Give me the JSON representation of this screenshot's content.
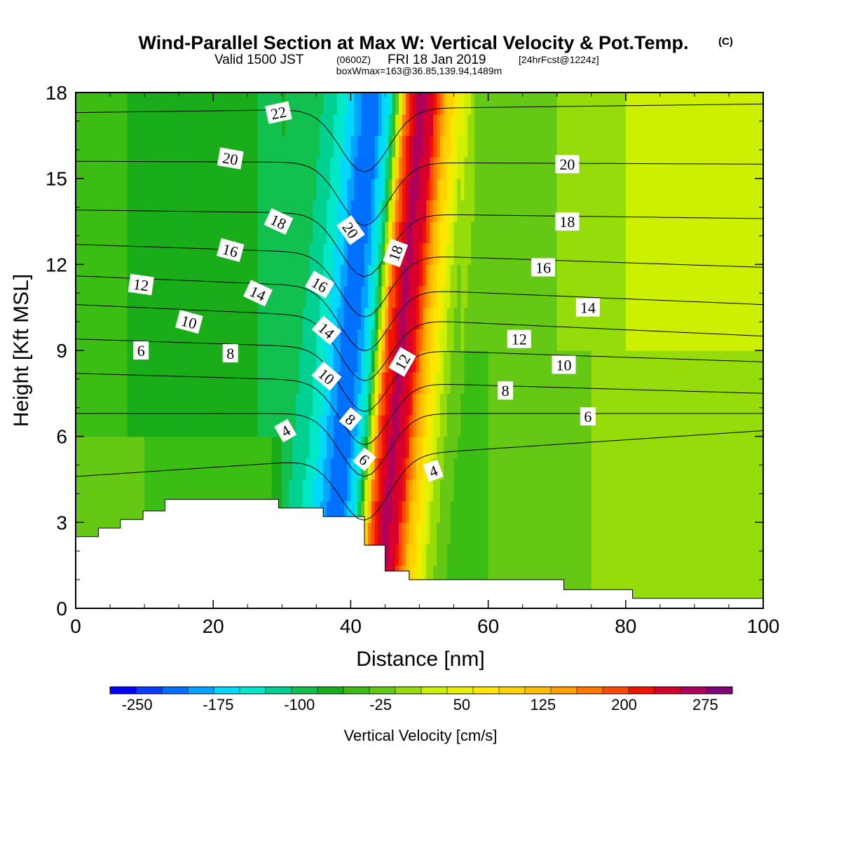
{
  "titles": {
    "main": "Wind-Parallel Section at Max W: Vertical Velocity & Pot.Temp.",
    "copyright": "(C)",
    "valid_prefix": "Valid 1500 JST",
    "valid_utc": "(0600Z)",
    "valid_date": "FRI 18 Jan 2019",
    "forecast_info": "[24hrFcst@1224z]",
    "box_info": "boxWmax=163@36.85,139.94,1489m"
  },
  "chart_data": {
    "type": "heatmap",
    "title": "Wind-Parallel Section at Max W: Vertical Velocity & Pot.Temp.",
    "xlabel": "Distance [nm]",
    "ylabel": "Height [Kft MSL]",
    "xlim": [
      0,
      100
    ],
    "ylim": [
      0,
      18
    ],
    "x_ticks": [
      "0",
      "20",
      "40",
      "60",
      "80",
      "100"
    ],
    "y_ticks": [
      "0",
      "3",
      "6",
      "9",
      "12",
      "15",
      "18"
    ],
    "x_tick_values": [
      0,
      20,
      40,
      60,
      80,
      100
    ],
    "y_tick_values": [
      0,
      3,
      6,
      9,
      12,
      15,
      18
    ],
    "colorbar": {
      "title": "Vertical Velocity [cm/s]",
      "labels": [
        "-250",
        "-175",
        "-100",
        "-25",
        "50",
        "125",
        "200",
        "275"
      ],
      "label_values": [
        -250,
        -175,
        -100,
        -25,
        50,
        125,
        200,
        275
      ],
      "min": -275,
      "max": 300,
      "step": 25,
      "colors": [
        "#0000ff",
        "#0a3cff",
        "#0070ff",
        "#00a4ff",
        "#00d8ff",
        "#00e8c8",
        "#00d090",
        "#12c050",
        "#1aad1a",
        "#3cbd14",
        "#64c814",
        "#96dc0a",
        "#cdef00",
        "#e8f000",
        "#ffe600",
        "#ffd200",
        "#ffbe00",
        "#ffa000",
        "#ff7800",
        "#ff4a00",
        "#f01400",
        "#d7002d",
        "#af005a",
        "#820078"
      ]
    },
    "velocity_profile": {
      "x": [
        0,
        5,
        10,
        15,
        20,
        25,
        30,
        33,
        36,
        38,
        40,
        42,
        44,
        46,
        48,
        50,
        53,
        56,
        60,
        70,
        80,
        90,
        100
      ],
      "w_cm_s": [
        -35,
        -45,
        -55,
        -60,
        -65,
        -70,
        -85,
        -110,
        -160,
        -215,
        -200,
        -120,
        200,
        290,
        250,
        130,
        10,
        -30,
        -25,
        -20,
        -10,
        -5,
        -5
      ]
    },
    "terrain_kft": {
      "x": [
        0,
        3.3,
        6.5,
        9.8,
        13,
        16,
        20,
        26,
        29.5,
        36,
        42,
        45,
        48.5,
        60,
        71,
        81,
        100
      ],
      "h": [
        2.5,
        2.8,
        3.1,
        3.4,
        3.8,
        3.8,
        3.8,
        3.8,
        3.5,
        3.2,
        2.2,
        1.3,
        1.0,
        1.0,
        0.65,
        0.35,
        0.35
      ]
    },
    "theta_contours": [
      {
        "label": "4",
        "y_left": 4.6,
        "y_right": 6.2
      },
      {
        "label": "6",
        "y_left": 6.8,
        "y_right": 6.8
      },
      {
        "label": "8",
        "y_left": 8.2,
        "y_right": 7.5
      },
      {
        "label": "10",
        "y_left": 9.4,
        "y_right": 8.6
      },
      {
        "label": "12",
        "y_left": 10.6,
        "y_right": 9.5
      },
      {
        "label": "14",
        "y_left": 11.6,
        "y_right": 10.6
      },
      {
        "label": "16",
        "y_left": 12.7,
        "y_right": 11.9
      },
      {
        "label": "18",
        "y_left": 13.9,
        "y_right": 13.6
      },
      {
        "label": "20",
        "y_left": 15.6,
        "y_right": 15.5
      },
      {
        "label": "22",
        "y_left": 17.3,
        "y_right": 17.6
      }
    ],
    "contour_labels": [
      {
        "text": "22",
        "x": 29.5,
        "y": 17.3,
        "angle": -12
      },
      {
        "text": "20",
        "x": 22.5,
        "y": 15.7,
        "angle": 10
      },
      {
        "text": "18",
        "x": 29.5,
        "y": 13.5,
        "angle": 25
      },
      {
        "text": "16",
        "x": 22.5,
        "y": 12.5,
        "angle": 15
      },
      {
        "text": "14",
        "x": 26.5,
        "y": 11.0,
        "angle": 25
      },
      {
        "text": "12",
        "x": 9.5,
        "y": 11.3,
        "angle": 8
      },
      {
        "text": "10",
        "x": 16.5,
        "y": 10.0,
        "angle": 15
      },
      {
        "text": "6",
        "x": 9.5,
        "y": 9.0,
        "angle": 0
      },
      {
        "text": "8",
        "x": 22.5,
        "y": 8.9,
        "angle": 0
      },
      {
        "text": "4",
        "x": 30.5,
        "y": 6.2,
        "angle": -30
      },
      {
        "text": "16",
        "x": 35.5,
        "y": 11.3,
        "angle": 30
      },
      {
        "text": "14",
        "x": 36.5,
        "y": 9.7,
        "angle": 40
      },
      {
        "text": "10",
        "x": 36.5,
        "y": 8.1,
        "angle": 40
      },
      {
        "text": "8",
        "x": 40,
        "y": 6.6,
        "angle": 40
      },
      {
        "text": "6",
        "x": 42,
        "y": 5.2,
        "angle": 40
      },
      {
        "text": "20",
        "x": 40,
        "y": 13.2,
        "angle": 55
      },
      {
        "text": "18",
        "x": 46.5,
        "y": 12.4,
        "angle": -70
      },
      {
        "text": "12",
        "x": 47.5,
        "y": 8.6,
        "angle": -60
      },
      {
        "text": "4",
        "x": 52,
        "y": 4.8,
        "angle": -20
      },
      {
        "text": "20",
        "x": 71.5,
        "y": 15.5,
        "angle": 0
      },
      {
        "text": "18",
        "x": 71.5,
        "y": 13.5,
        "angle": 0
      },
      {
        "text": "16",
        "x": 68,
        "y": 11.9,
        "angle": 0
      },
      {
        "text": "14",
        "x": 74.5,
        "y": 10.5,
        "angle": 0
      },
      {
        "text": "12",
        "x": 64.5,
        "y": 9.4,
        "angle": 0
      },
      {
        "text": "10",
        "x": 71,
        "y": 8.5,
        "angle": 0
      },
      {
        "text": "8",
        "x": 62.5,
        "y": 7.6,
        "angle": 0
      },
      {
        "text": "6",
        "x": 74.5,
        "y": 6.7,
        "angle": 0
      }
    ]
  }
}
